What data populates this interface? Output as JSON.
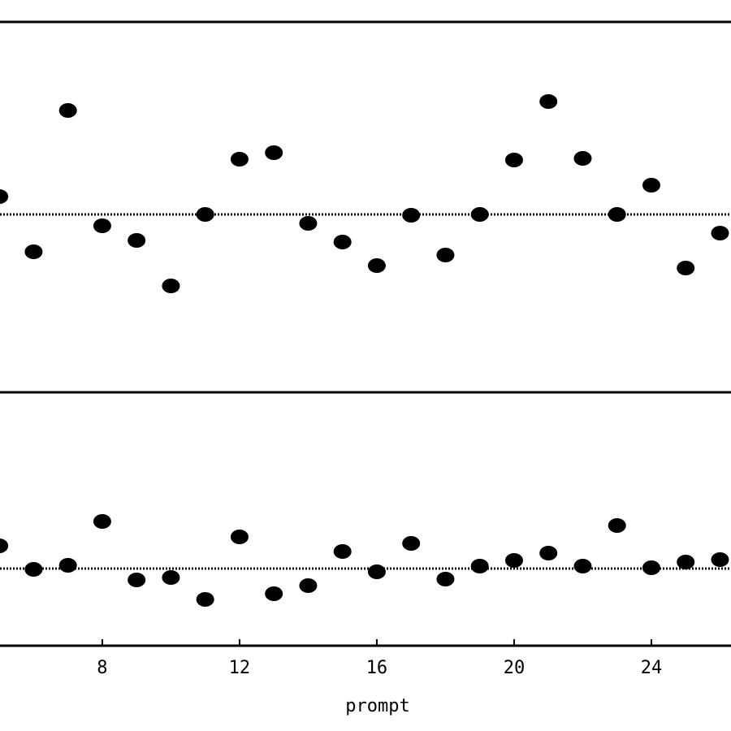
{
  "chart_data": [
    {
      "type": "scatter",
      "x": [
        5,
        6,
        7,
        8,
        9,
        10,
        11,
        12,
        13,
        14,
        15,
        16,
        17,
        18,
        19,
        20,
        21,
        22,
        23,
        24,
        25,
        26
      ],
      "values": [
        0.22,
        -0.46,
        1.28,
        -0.14,
        -0.32,
        -0.88,
        0,
        0.68,
        0.76,
        -0.11,
        -0.34,
        -0.63,
        -0.01,
        -0.5,
        0,
        0.67,
        1.39,
        0.69,
        0,
        0.36,
        -0.66,
        -0.23
      ],
      "color": "#000000",
      "reference_line": 0,
      "xlim": [
        5.02,
        26.32
      ],
      "ylim": [
        -2.19,
        2.37
      ]
    },
    {
      "type": "scatter",
      "x": [
        5,
        6,
        7,
        8,
        9,
        10,
        11,
        12,
        13,
        14,
        15,
        16,
        17,
        18,
        19,
        20,
        21,
        22,
        23,
        24,
        25,
        26
      ],
      "values": [
        0.28,
        -0.01,
        0.04,
        0.58,
        -0.14,
        -0.11,
        -0.38,
        0.39,
        -0.31,
        -0.21,
        0.21,
        -0.04,
        0.31,
        -0.13,
        0.03,
        0.1,
        0.19,
        0.03,
        0.53,
        0.01,
        0.08,
        0.11
      ],
      "color": "#000000",
      "reference_line": 0,
      "xlim": [
        5.02,
        26.32
      ],
      "ylim": [
        -0.95,
        2.17
      ],
      "xticks": [
        8,
        12,
        16,
        20,
        24
      ],
      "x_label": "prompt"
    }
  ]
}
